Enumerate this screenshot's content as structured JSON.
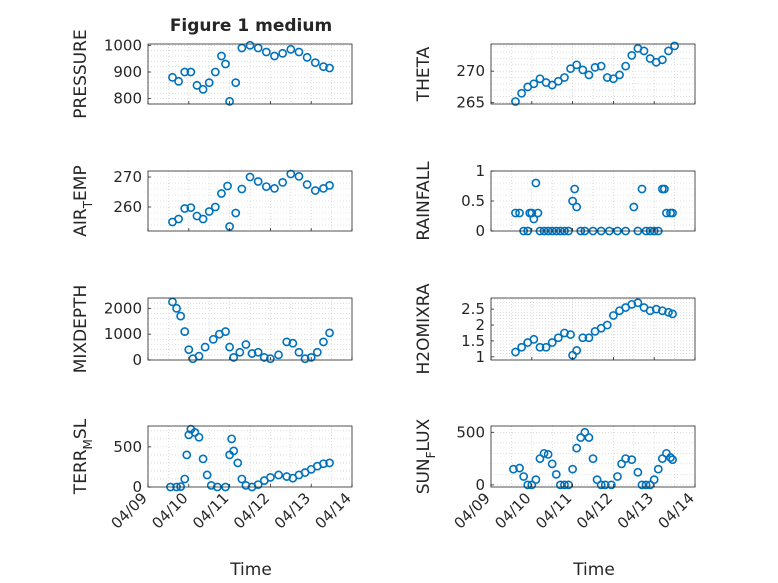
{
  "figure": {
    "title": "Figure 1 medium",
    "bottom_xlabel_left": "Time",
    "bottom_xlabel_right": "Time",
    "marker_color": "#0072BD"
  },
  "chart_data": [
    {
      "id": "pressure",
      "type": "scatter",
      "ylabel_base": "PRESSURE",
      "ylabel_sub": "",
      "ylabel_tail": "",
      "ylim": [
        780,
        1005
      ],
      "yticks": [
        800,
        900,
        1000
      ],
      "yticklabels": [
        "800",
        "900",
        "1000"
      ],
      "xlim": [
        0,
        5
      ],
      "xtick_labels": [
        "04/09",
        "04/10",
        "04/11",
        "04/12",
        "04/13",
        "04/14"
      ],
      "grid": true,
      "x": [
        0.6,
        0.75,
        0.9,
        1.05,
        1.2,
        1.35,
        1.5,
        1.65,
        1.8,
        1.9,
        2.0,
        2.15,
        2.3,
        2.5,
        2.7,
        2.9,
        3.1,
        3.3,
        3.5,
        3.7,
        3.9,
        4.1,
        4.3,
        4.45
      ],
      "y": [
        880,
        865,
        900,
        900,
        850,
        835,
        860,
        900,
        960,
        930,
        790,
        860,
        990,
        1000,
        990,
        975,
        960,
        970,
        985,
        975,
        955,
        935,
        920,
        915
      ]
    },
    {
      "id": "theta",
      "type": "scatter",
      "ylabel_base": "THETA",
      "ylabel_sub": "",
      "ylabel_tail": "",
      "ylim": [
        264.8,
        274.3
      ],
      "yticks": [
        265,
        270
      ],
      "yticklabels": [
        "265",
        "270"
      ],
      "xlim": [
        0,
        5
      ],
      "xtick_labels": [
        "04/09",
        "04/10",
        "04/11",
        "04/12",
        "04/13",
        "04/14"
      ],
      "grid": true,
      "x": [
        0.6,
        0.75,
        0.9,
        1.05,
        1.2,
        1.35,
        1.5,
        1.65,
        1.8,
        1.95,
        2.1,
        2.25,
        2.4,
        2.55,
        2.7,
        2.85,
        3.0,
        3.15,
        3.3,
        3.45,
        3.6,
        3.75,
        3.9,
        4.05,
        4.2,
        4.35,
        4.5
      ],
      "y": [
        265.2,
        266.5,
        267.5,
        268.0,
        268.8,
        268.2,
        267.8,
        268.4,
        269.0,
        270.4,
        271.0,
        270.2,
        269.4,
        270.6,
        270.8,
        269.0,
        268.8,
        269.4,
        270.8,
        272.5,
        273.6,
        273.2,
        272.0,
        271.4,
        271.8,
        273.2,
        274.0
      ]
    },
    {
      "id": "air_temp",
      "type": "scatter",
      "ylabel_base": "AIR",
      "ylabel_sub": "T",
      "ylabel_tail": "EMP",
      "ylim": [
        252,
        272
      ],
      "yticks": [
        260,
        270
      ],
      "yticklabels": [
        "260",
        "270"
      ],
      "xlim": [
        0,
        5
      ],
      "xtick_labels": [
        "04/09",
        "04/10",
        "04/11",
        "04/12",
        "04/13",
        "04/14"
      ],
      "grid": true,
      "x": [
        0.6,
        0.75,
        0.9,
        1.05,
        1.2,
        1.35,
        1.5,
        1.65,
        1.8,
        1.95,
        2.0,
        2.15,
        2.3,
        2.5,
        2.7,
        2.9,
        3.1,
        3.3,
        3.5,
        3.7,
        3.9,
        4.1,
        4.3,
        4.45
      ],
      "y": [
        255,
        256,
        259.5,
        259.8,
        257,
        256,
        258.5,
        260,
        264.5,
        267,
        253.5,
        258,
        266,
        270,
        268.5,
        266.8,
        266.2,
        268.2,
        271,
        270.2,
        267.5,
        265.5,
        266.2,
        267.2
      ]
    },
    {
      "id": "rainfall",
      "type": "scatter",
      "ylabel_base": "RAINFALL",
      "ylabel_sub": "",
      "ylabel_tail": "",
      "ylim": [
        0,
        1
      ],
      "yticks": [
        0,
        0.5,
        1
      ],
      "yticklabels": [
        "0",
        "0.5",
        "1"
      ],
      "xlim": [
        0,
        5
      ],
      "xtick_labels": [
        "04/09",
        "04/10",
        "04/11",
        "04/12",
        "04/13",
        "04/14"
      ],
      "grid": true,
      "x": [
        0.6,
        0.7,
        0.8,
        0.9,
        0.95,
        1.0,
        1.05,
        1.1,
        1.15,
        1.2,
        1.3,
        1.4,
        1.5,
        1.6,
        1.7,
        1.8,
        1.9,
        2.0,
        2.05,
        2.1,
        2.2,
        2.3,
        2.5,
        2.7,
        2.9,
        3.1,
        3.3,
        3.5,
        3.6,
        3.7,
        3.8,
        3.9,
        4.0,
        4.1,
        4.2,
        4.25,
        4.3,
        4.4,
        4.45
      ],
      "y": [
        0.3,
        0.3,
        0,
        0,
        0.3,
        0.3,
        0.2,
        0.8,
        0.3,
        0,
        0,
        0,
        0,
        0,
        0,
        0,
        0,
        0.5,
        0.7,
        0.4,
        0,
        0,
        0,
        0,
        0,
        0,
        0,
        0.4,
        0,
        0.7,
        0,
        0,
        0,
        0,
        0.7,
        0.7,
        0.3,
        0.3,
        0.3
      ]
    },
    {
      "id": "mixdepth",
      "type": "scatter",
      "ylabel_base": "MIXDEPTH",
      "ylabel_sub": "",
      "ylabel_tail": "",
      "ylim": [
        0,
        2400
      ],
      "yticks": [
        0,
        1000,
        2000
      ],
      "yticklabels": [
        "0",
        "1000",
        "2000"
      ],
      "xlim": [
        0,
        5
      ],
      "xtick_labels": [
        "04/09",
        "04/10",
        "04/11",
        "04/12",
        "04/13",
        "04/14"
      ],
      "grid": true,
      "x": [
        0.6,
        0.7,
        0.8,
        0.9,
        1.0,
        1.1,
        1.25,
        1.4,
        1.6,
        1.75,
        1.9,
        2.0,
        2.1,
        2.25,
        2.4,
        2.55,
        2.7,
        2.85,
        3.0,
        3.2,
        3.4,
        3.55,
        3.7,
        3.85,
        4.0,
        4.15,
        4.3,
        4.45
      ],
      "y": [
        2250,
        2000,
        1700,
        1100,
        400,
        50,
        150,
        500,
        800,
        1000,
        1100,
        500,
        100,
        300,
        600,
        250,
        300,
        100,
        50,
        200,
        700,
        650,
        300,
        50,
        100,
        300,
        700,
        1050
      ]
    },
    {
      "id": "h2omixra",
      "type": "scatter",
      "ylabel_base": "H2OMIXRA",
      "ylabel_sub": "",
      "ylabel_tail": "",
      "ylim": [
        0.9,
        2.85
      ],
      "yticks": [
        1,
        1.5,
        2,
        2.5
      ],
      "yticklabels": [
        "1",
        "1.5",
        "2",
        "2.5"
      ],
      "xlim": [
        0,
        5
      ],
      "xtick_labels": [
        "04/09",
        "04/10",
        "04/11",
        "04/12",
        "04/13",
        "04/14"
      ],
      "grid": true,
      "x": [
        0.6,
        0.75,
        0.9,
        1.05,
        1.2,
        1.35,
        1.5,
        1.65,
        1.8,
        1.95,
        2.0,
        2.1,
        2.25,
        2.4,
        2.55,
        2.7,
        2.85,
        3.0,
        3.15,
        3.3,
        3.45,
        3.6,
        3.75,
        3.9,
        4.05,
        4.2,
        4.35,
        4.45
      ],
      "y": [
        1.15,
        1.3,
        1.45,
        1.55,
        1.3,
        1.3,
        1.45,
        1.6,
        1.75,
        1.7,
        1.05,
        1.2,
        1.6,
        1.6,
        1.8,
        1.9,
        2.0,
        2.3,
        2.45,
        2.55,
        2.65,
        2.7,
        2.55,
        2.45,
        2.5,
        2.45,
        2.4,
        2.35
      ]
    },
    {
      "id": "terr_msl",
      "type": "scatter",
      "ylabel_base": "TERR",
      "ylabel_sub": "M",
      "ylabel_tail": "SL",
      "ylim": [
        0,
        760
      ],
      "yticks": [
        0,
        500
      ],
      "yticklabels": [
        "0",
        "500"
      ],
      "xlim": [
        0,
        5
      ],
      "xtick_labels": [
        "04/09",
        "04/10",
        "04/11",
        "04/12",
        "04/13",
        "04/14"
      ],
      "grid": true,
      "x": [
        0.55,
        0.7,
        0.8,
        0.9,
        0.95,
        1.0,
        1.05,
        1.15,
        1.25,
        1.35,
        1.45,
        1.55,
        1.7,
        1.9,
        2.0,
        2.05,
        2.1,
        2.2,
        2.3,
        2.4,
        2.55,
        2.7,
        2.85,
        3.0,
        3.2,
        3.4,
        3.55,
        3.7,
        3.85,
        4.0,
        4.15,
        4.3,
        4.45
      ],
      "y": [
        0,
        0,
        5,
        100,
        400,
        650,
        720,
        680,
        620,
        350,
        150,
        20,
        0,
        0,
        400,
        600,
        450,
        300,
        100,
        20,
        0,
        30,
        80,
        120,
        150,
        130,
        110,
        150,
        180,
        220,
        260,
        290,
        300
      ]
    },
    {
      "id": "sun_flux",
      "type": "scatter",
      "ylabel_base": "SUN",
      "ylabel_sub": "F",
      "ylabel_tail": "LUX",
      "ylim": [
        -20,
        560
      ],
      "yticks": [
        0,
        500
      ],
      "yticklabels": [
        "0",
        "500"
      ],
      "xlim": [
        0,
        5
      ],
      "xtick_labels": [
        "04/09",
        "04/10",
        "04/11",
        "04/12",
        "04/13",
        "04/14"
      ],
      "grid": true,
      "x": [
        0.55,
        0.7,
        0.8,
        0.9,
        1.0,
        1.1,
        1.2,
        1.3,
        1.4,
        1.5,
        1.6,
        1.7,
        1.8,
        1.9,
        2.0,
        2.1,
        2.2,
        2.3,
        2.4,
        2.5,
        2.6,
        2.7,
        2.8,
        2.95,
        3.1,
        3.2,
        3.3,
        3.45,
        3.6,
        3.7,
        3.8,
        3.9,
        4.0,
        4.1,
        4.2,
        4.3,
        4.4,
        4.45
      ],
      "y": [
        150,
        160,
        80,
        0,
        0,
        50,
        250,
        300,
        290,
        200,
        100,
        0,
        0,
        0,
        150,
        350,
        450,
        500,
        450,
        250,
        50,
        0,
        0,
        0,
        80,
        200,
        250,
        240,
        120,
        0,
        0,
        0,
        50,
        150,
        250,
        300,
        260,
        240
      ]
    }
  ]
}
